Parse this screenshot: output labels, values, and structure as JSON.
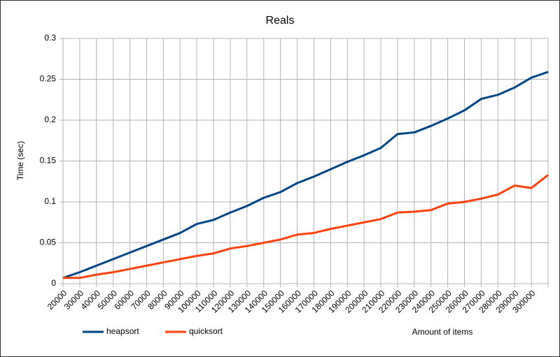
{
  "chart_data": {
    "type": "line",
    "title": "Reals",
    "xlabel": "Amount of items",
    "ylabel": "Time (sec)",
    "categories": [
      "20000",
      "30000",
      "40000",
      "50000",
      "60000",
      "70000",
      "80000",
      "90000",
      "100000",
      "110000",
      "120000",
      "130000",
      "140000",
      "150000",
      "160000",
      "170000",
      "180000",
      "190000",
      "200000",
      "210000",
      "220000",
      "230000",
      "240000",
      "250000",
      "260000",
      "270000",
      "280000",
      "290000",
      "300000",
      null
    ],
    "series": [
      {
        "name": "heapsort",
        "color": "#004586",
        "values": [
          0.007,
          0.014,
          0.022,
          0.03,
          0.038,
          0.046,
          0.054,
          0.062,
          0.073,
          0.078,
          0.087,
          0.095,
          0.105,
          0.112,
          0.123,
          0.131,
          0.14,
          0.149,
          0.157,
          0.166,
          0.183,
          0.185,
          0.193,
          0.202,
          0.212,
          0.226,
          0.231,
          0.24,
          0.252,
          0.259
        ]
      },
      {
        "name": "quicksort",
        "color": "#ff420e",
        "values": [
          0.007,
          0.007,
          0.011,
          0.014,
          0.018,
          0.022,
          0.026,
          0.03,
          0.034,
          0.037,
          0.043,
          0.046,
          0.05,
          0.054,
          0.06,
          0.062,
          0.067,
          0.071,
          0.075,
          0.079,
          0.087,
          0.088,
          0.09,
          0.098,
          0.1,
          0.104,
          0.109,
          0.12,
          0.117,
          0.133
        ]
      }
    ],
    "ylim": [
      0,
      0.3
    ],
    "yticks": [
      0,
      0.05,
      0.1,
      0.15,
      0.2,
      0.25,
      0.3
    ],
    "grid": true,
    "legend": "bottom"
  }
}
